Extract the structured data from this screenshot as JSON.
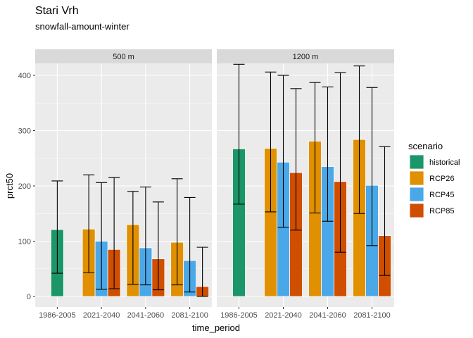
{
  "chart_data": {
    "type": "bar",
    "title": "Stari Vrh",
    "subtitle": "snowfall-amount-winter",
    "xlabel": "time_period",
    "ylabel": "prct50",
    "ylim": [
      0,
      440
    ],
    "yticks": [
      0,
      100,
      200,
      300,
      400
    ],
    "categories": [
      "1986-2005",
      "2021-2040",
      "2041-2060",
      "2081-2100"
    ],
    "grid": true,
    "legend": {
      "title": "scenario",
      "position": "right",
      "entries": [
        "historical",
        "RCP26",
        "RCP45",
        "RCP85"
      ]
    },
    "colors": {
      "historical": "#1b9669",
      "RCP26": "#e09000",
      "RCP45": "#4ba8e8",
      "RCP85": "#d04e00",
      "panel_bg": "#ebebeb",
      "strip_bg": "#d9d9d9",
      "grid": "#ffffff"
    },
    "facets": [
      {
        "label": "500 m",
        "series": [
          {
            "name": "historical",
            "values": [
              121,
              null,
              null,
              null
            ],
            "lower": [
              42,
              null,
              null,
              null
            ],
            "upper": [
              209,
              null,
              null,
              null
            ]
          },
          {
            "name": "RCP26",
            "values": [
              null,
              122,
              130,
              98
            ],
            "lower": [
              null,
              43,
              22,
              21
            ],
            "upper": [
              null,
              220,
              190,
              213
            ]
          },
          {
            "name": "RCP45",
            "values": [
              null,
              100,
              88,
              65
            ],
            "lower": [
              null,
              13,
              21,
              8
            ],
            "upper": [
              null,
              206,
              198,
              179
            ]
          },
          {
            "name": "RCP85",
            "values": [
              null,
              85,
              68,
              18
            ],
            "lower": [
              null,
              14,
              12,
              0
            ],
            "upper": [
              null,
              215,
              171,
              89
            ]
          }
        ]
      },
      {
        "label": "1200 m",
        "series": [
          {
            "name": "historical",
            "values": [
              267,
              null,
              null,
              null
            ],
            "lower": [
              167,
              null,
              null,
              null
            ],
            "upper": [
              420,
              null,
              null,
              null
            ]
          },
          {
            "name": "RCP26",
            "values": [
              null,
              268,
              281,
              284
            ],
            "lower": [
              null,
              153,
              151,
              150
            ],
            "upper": [
              null,
              406,
              387,
              417
            ]
          },
          {
            "name": "RCP45",
            "values": [
              null,
              243,
              235,
              201
            ],
            "lower": [
              null,
              125,
              136,
              92
            ],
            "upper": [
              null,
              400,
              379,
              378
            ]
          },
          {
            "name": "RCP85",
            "values": [
              null,
              224,
              208,
              110
            ],
            "lower": [
              null,
              120,
              80,
              38
            ],
            "upper": [
              null,
              376,
              405,
              271
            ]
          }
        ]
      }
    ]
  }
}
